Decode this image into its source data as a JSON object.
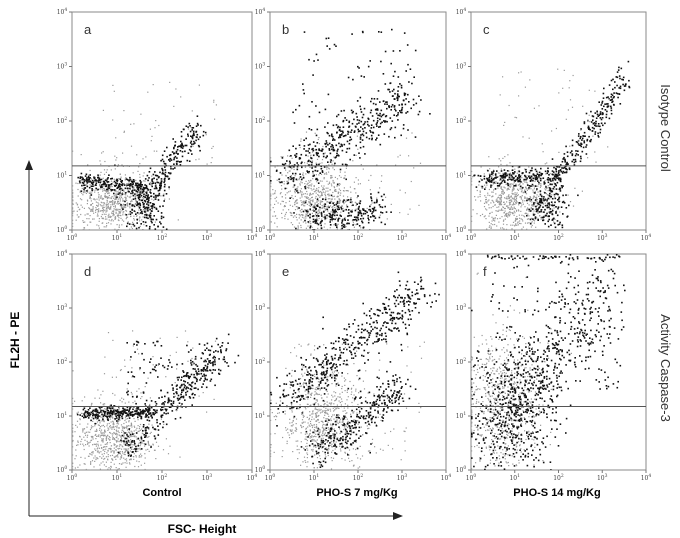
{
  "chart_data": {
    "type": "scatter",
    "x_axis_title": "FSC- Height",
    "y_axis_title": "FL2H - PE",
    "x_scale": "log",
    "y_scale": "log",
    "xlim": [
      1,
      10000
    ],
    "ylim": [
      1,
      10000
    ],
    "ticks": [
      {
        "base": "10",
        "exp": "0"
      },
      {
        "base": "10",
        "exp": "1"
      },
      {
        "base": "10",
        "exp": "2"
      },
      {
        "base": "10",
        "exp": "3"
      },
      {
        "base": "10",
        "exp": "4"
      }
    ],
    "gate_y": 15,
    "rows": [
      "Isotype Control",
      "Activity Caspase-3"
    ],
    "columns": [
      "Control",
      "PHO-S 7 mg/Kg",
      "PHO-S 14 mg/Kg"
    ],
    "panels": [
      {
        "letter": "a",
        "row": 0,
        "col": 0
      },
      {
        "letter": "b",
        "row": 0,
        "col": 1
      },
      {
        "letter": "c",
        "row": 0,
        "col": 2
      },
      {
        "letter": "d",
        "row": 1,
        "col": 0
      },
      {
        "letter": "e",
        "row": 1,
        "col": 1
      },
      {
        "letter": "f",
        "row": 1,
        "col": 2
      }
    ],
    "dot_color": "#111111",
    "density_color": "#9a9a9a",
    "frame_color": "#8a8a8a"
  }
}
